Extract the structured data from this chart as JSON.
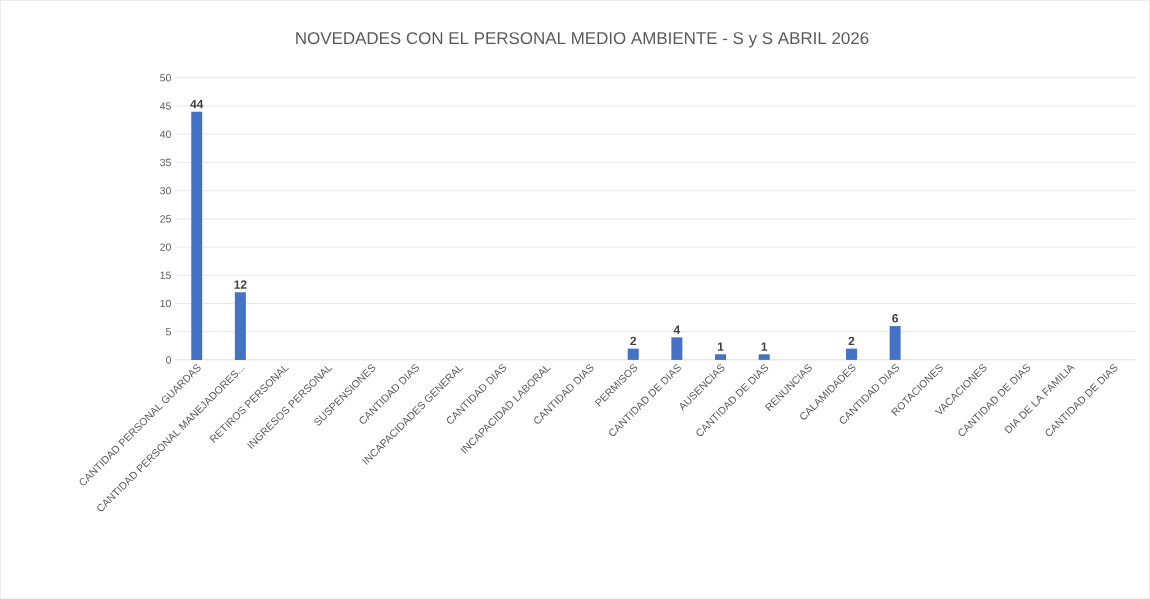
{
  "chart_data": {
    "type": "bar",
    "title": "NOVEDADES CON EL PERSONAL MEDIO AMBIENTE - S y S ABRIL 2026",
    "categories": [
      "CANTIDAD PERSONAL GUARDAS",
      "CANTIDAD PERSONAL MANEJADORES...",
      "RETIROS PERSONAL",
      "INGRESOS PERSONAL",
      "SUSPENSIONES",
      "CANTIDAD DIAS",
      "INCAPACIDADES GENERAL",
      "CANTIDAD DIAS",
      "INCAPACIDAD LABORAL",
      "CANTIDAD DIAS",
      "PERMISOS",
      "CANTIDAD DE DIAS",
      "AUSENCIAS",
      "CANTIDAD DE DIAS",
      "RENUNCIAS",
      "CALAMIDADES",
      "CANTIDAD DIAS",
      "ROTACIONES",
      "VACACIONES",
      "CANTIDAD DE DIAS",
      "DIA DE LA FAMILIA",
      "CANTIDAD DE DIAS"
    ],
    "values": [
      44,
      12,
      0,
      0,
      0,
      0,
      0,
      0,
      0,
      0,
      2,
      4,
      1,
      1,
      0,
      2,
      6,
      0,
      0,
      0,
      0,
      0
    ],
    "value_labels": [
      "44",
      "12",
      null,
      null,
      null,
      null,
      null,
      null,
      null,
      null,
      "2",
      "4",
      "1",
      "1",
      null,
      "2",
      "6",
      null,
      null,
      null,
      null,
      null
    ],
    "color": "#4472c4",
    "ylim": [
      0,
      50
    ],
    "yticks": [
      0,
      5,
      10,
      15,
      20,
      25,
      30,
      35,
      40,
      45,
      50
    ],
    "grid": "y"
  }
}
